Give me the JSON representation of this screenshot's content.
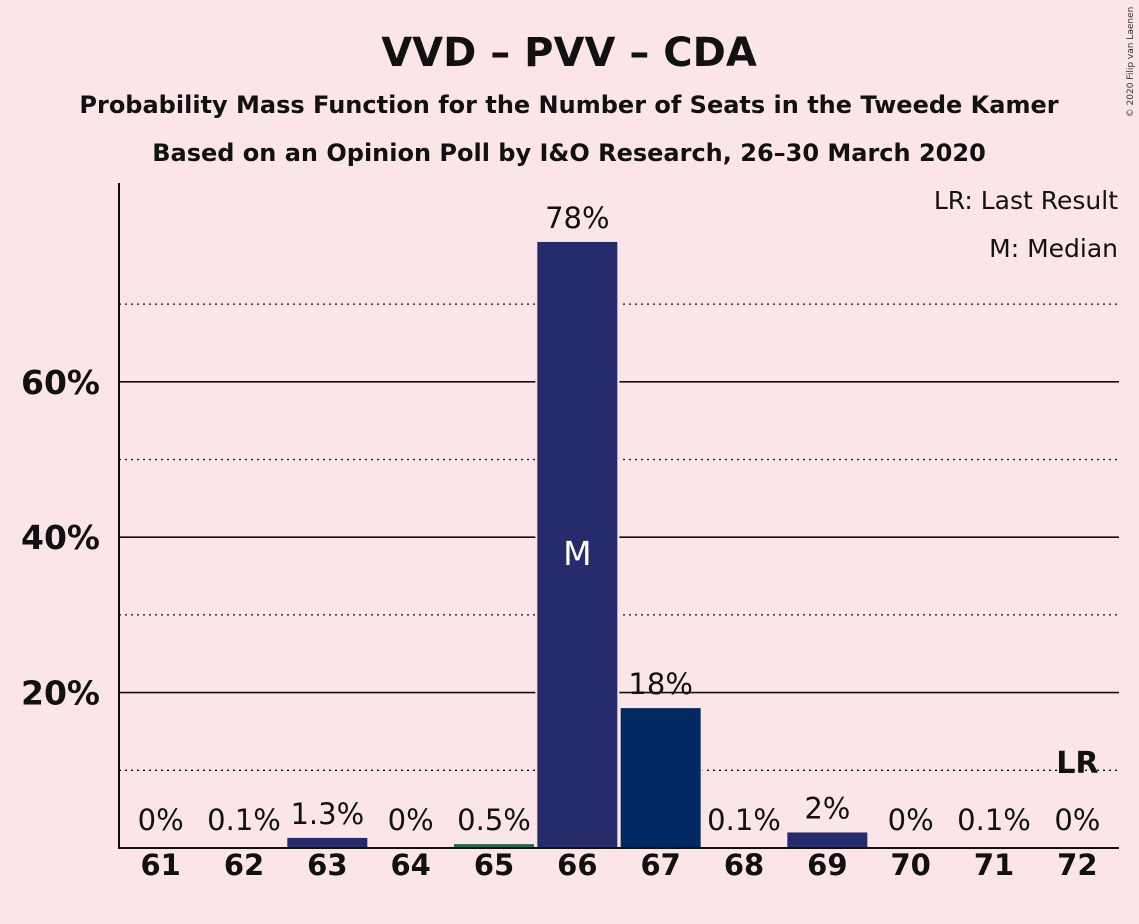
{
  "header": {
    "title": "VVD – PVV – CDA",
    "subtitle1": "Probability Mass Function for the Number of Seats in the Tweede Kamer",
    "subtitle2": "Based on an Opinion Poll by I&O Research, 26–30 March 2020"
  },
  "legend": {
    "last_result": "LR: Last Result",
    "median": "M: Median"
  },
  "copyright": "© 2020 Filip van Laenen",
  "chart_data": {
    "type": "bar",
    "categories": [
      "61",
      "62",
      "63",
      "64",
      "65",
      "66",
      "67",
      "68",
      "69",
      "70",
      "71",
      "72"
    ],
    "values": [
      0,
      0.1,
      1.3,
      0,
      0.5,
      78,
      18,
      0.1,
      2,
      0,
      0.1,
      0
    ],
    "data_labels": [
      "0%",
      "0.1%",
      "1.3%",
      "0%",
      "0.5%",
      "78%",
      "18%",
      "0.1%",
      "2%",
      "0%",
      "0.1%",
      "0%"
    ],
    "bar_colors": [
      "#262b6b",
      "#262b6b",
      "#262b6b",
      "#262b6b",
      "#1d6b4d",
      "#262b6b",
      "#002963",
      "#262b6b",
      "#262b6b",
      "#262b6b",
      "#262b6b",
      "#262b6b"
    ],
    "median_category": "66",
    "median_mark": "M",
    "last_result_category": "72",
    "last_result_mark": "LR",
    "y_ticks": [
      20,
      40,
      60
    ],
    "y_tick_labels": [
      "20%",
      "40%",
      "60%"
    ],
    "y_minor_ticks": [
      10,
      30,
      50,
      70
    ],
    "ylim": [
      0,
      85
    ],
    "grid": true,
    "legend_position": "top-right",
    "colors": {
      "background": "#fbe5e6",
      "axis": "#111111"
    }
  }
}
